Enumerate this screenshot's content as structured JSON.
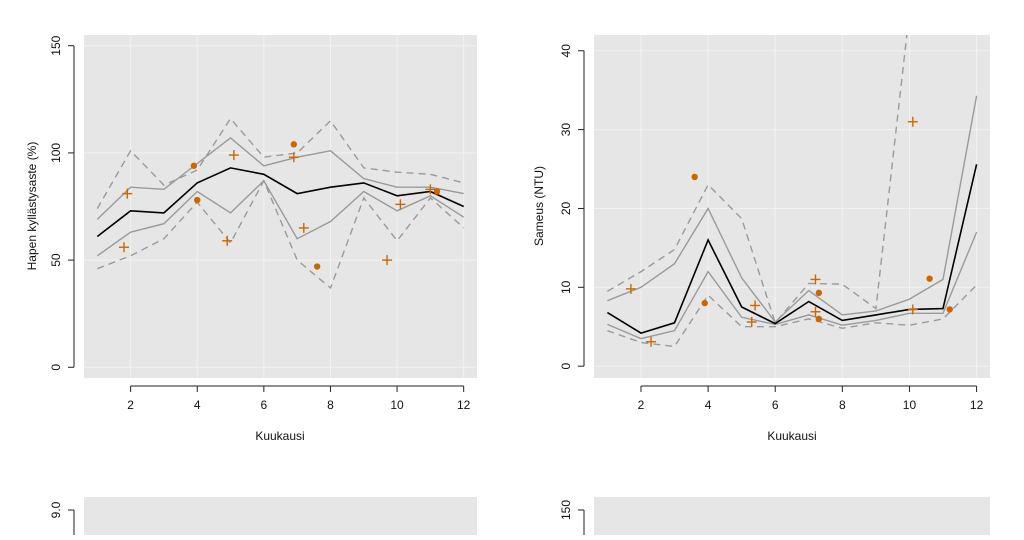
{
  "colors": {
    "panel_bg": "#e6e6e6",
    "median": "#000000",
    "inner_band": "#9a9a9a",
    "outer_band": "#9a9a9a",
    "observations": "#cc6600"
  },
  "chart_data": [
    {
      "type": "line",
      "title": "",
      "xlabel": "Kuukausi",
      "ylabel": "Hapen kyllästysaste (%)",
      "xlim": [
        0.6,
        12.4
      ],
      "ylim": [
        -5,
        155
      ],
      "xticks": [
        "2",
        "4",
        "6",
        "8",
        "10",
        "12"
      ],
      "yticks": [
        "0",
        "50",
        "100",
        "150"
      ],
      "grid": true,
      "x": [
        1,
        2,
        3,
        4,
        5,
        6,
        7,
        8,
        9,
        10,
        11,
        12
      ],
      "series": [
        {
          "role": "median",
          "style": "solid",
          "values": [
            61,
            73,
            72,
            86,
            93,
            90,
            81,
            84,
            86,
            80,
            82,
            75
          ]
        },
        {
          "role": "upper-inner",
          "style": "solid",
          "values": [
            69,
            84,
            83,
            95,
            107,
            94,
            98,
            101,
            88,
            84,
            84,
            81
          ]
        },
        {
          "role": "lower-inner",
          "style": "solid",
          "values": [
            52,
            63,
            67,
            82,
            72,
            87,
            60,
            68,
            82,
            73,
            80,
            70
          ]
        },
        {
          "role": "upper-outer",
          "style": "dashed",
          "values": [
            74,
            101,
            85,
            92,
            116,
            98,
            100,
            115,
            93,
            91,
            90,
            86
          ]
        },
        {
          "role": "lower-outer",
          "style": "dashed",
          "values": [
            46,
            52,
            60,
            77,
            58,
            87,
            50,
            37,
            79,
            59,
            79,
            65
          ]
        }
      ],
      "points": [
        {
          "marker": "plus",
          "x": 1.9,
          "y": 81
        },
        {
          "marker": "plus",
          "x": 1.8,
          "y": 56
        },
        {
          "marker": "dot",
          "x": 3.9,
          "y": 94
        },
        {
          "marker": "dot",
          "x": 4.0,
          "y": 78
        },
        {
          "marker": "plus",
          "x": 4.9,
          "y": 59
        },
        {
          "marker": "plus",
          "x": 5.1,
          "y": 99
        },
        {
          "marker": "dot",
          "x": 6.9,
          "y": 104
        },
        {
          "marker": "plus",
          "x": 6.9,
          "y": 98
        },
        {
          "marker": "plus",
          "x": 7.2,
          "y": 65
        },
        {
          "marker": "dot",
          "x": 7.6,
          "y": 47
        },
        {
          "marker": "plus",
          "x": 9.7,
          "y": 50
        },
        {
          "marker": "plus",
          "x": 10.1,
          "y": 76
        },
        {
          "marker": "plus",
          "x": 11.0,
          "y": 83
        },
        {
          "marker": "dot",
          "x": 11.2,
          "y": 82
        }
      ]
    },
    {
      "type": "line",
      "title": "",
      "xlabel": "Kuukausi",
      "ylabel": "Sameus (NTU)",
      "xlim": [
        0.6,
        12.4
      ],
      "ylim": [
        -1.5,
        42
      ],
      "xticks": [
        "2",
        "4",
        "6",
        "8",
        "10",
        "12"
      ],
      "yticks": [
        "0",
        "10",
        "20",
        "30",
        "40"
      ],
      "grid": true,
      "x": [
        1,
        2,
        3,
        4,
        5,
        6,
        7,
        8,
        9,
        10,
        11,
        12
      ],
      "series": [
        {
          "role": "median",
          "style": "solid",
          "values": [
            6.8,
            4.2,
            5.5,
            16,
            7.5,
            5.4,
            8.2,
            5.8,
            6.5,
            7.2,
            7.3,
            25.6
          ]
        },
        {
          "role": "upper-inner",
          "style": "solid",
          "values": [
            8.3,
            10,
            13,
            20,
            11.2,
            5.6,
            9.6,
            6.5,
            7,
            8.5,
            11,
            34.3
          ]
        },
        {
          "role": "lower-inner",
          "style": "solid",
          "values": [
            5.3,
            3.5,
            4.5,
            12,
            6.2,
            5.3,
            6.5,
            5.2,
            5.8,
            6.7,
            6.7,
            17
          ]
        },
        {
          "role": "upper-outer",
          "style": "dashed",
          "values": [
            9.5,
            12,
            14.8,
            23,
            18.7,
            5.5,
            10.5,
            10.4,
            7.3,
            45,
            45,
            45
          ]
        },
        {
          "role": "lower-outer",
          "style": "dashed",
          "values": [
            4.5,
            3,
            2.5,
            9,
            5,
            5,
            6,
            4.8,
            5.5,
            5.2,
            6,
            10.3
          ]
        }
      ],
      "points": [
        {
          "marker": "plus",
          "x": 1.7,
          "y": 9.8
        },
        {
          "marker": "plus",
          "x": 2.3,
          "y": 3.1
        },
        {
          "marker": "dot",
          "x": 3.6,
          "y": 24
        },
        {
          "marker": "dot",
          "x": 3.9,
          "y": 8
        },
        {
          "marker": "plus",
          "x": 5.3,
          "y": 5.6
        },
        {
          "marker": "plus",
          "x": 5.4,
          "y": 7.7
        },
        {
          "marker": "plus",
          "x": 7.2,
          "y": 11
        },
        {
          "marker": "plus",
          "x": 7.2,
          "y": 6.9
        },
        {
          "marker": "dot",
          "x": 7.3,
          "y": 9.3
        },
        {
          "marker": "dot",
          "x": 7.3,
          "y": 6
        },
        {
          "marker": "plus",
          "x": 10.1,
          "y": 31
        },
        {
          "marker": "plus",
          "x": 10.1,
          "y": 7.2
        },
        {
          "marker": "dot",
          "x": 10.6,
          "y": 11.1
        },
        {
          "marker": "dot",
          "x": 11.2,
          "y": 7.2
        }
      ]
    },
    {
      "type": "line",
      "title": "",
      "xlabel": "",
      "ylabel": "",
      "visible_ytick": "9.0"
    },
    {
      "type": "line",
      "title": "",
      "xlabel": "",
      "ylabel": "",
      "visible_ytick": "150"
    }
  ]
}
